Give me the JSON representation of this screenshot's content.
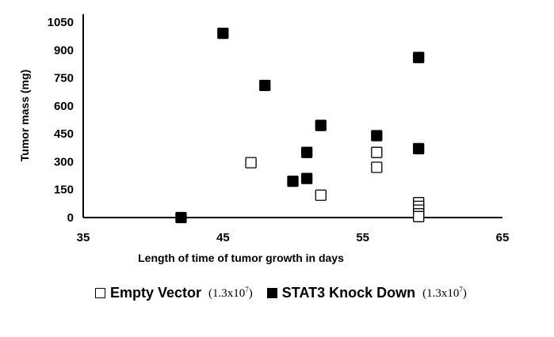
{
  "chart_data": {
    "type": "scatter",
    "title": "",
    "xlabel": "Length of  time of tumor growth in days",
    "ylabel": "Tumor mass (mg)",
    "xlim": [
      35,
      65
    ],
    "ylim": [
      0,
      1050
    ],
    "xticks": [
      "35",
      "45",
      "55",
      "65"
    ],
    "yticks": [
      "0",
      "150",
      "300",
      "450",
      "600",
      "750",
      "900",
      "1050"
    ],
    "grid": false,
    "legend_position": "bottom",
    "series": [
      {
        "name": "Empty Vector",
        "note": "(1.3x10",
        "note_sup": "7",
        "note_end": ")",
        "marker": "hollow-square",
        "color": "#000000",
        "points": [
          {
            "x": 47,
            "y": 295
          },
          {
            "x": 52,
            "y": 120
          },
          {
            "x": 56,
            "y": 350
          },
          {
            "x": 56,
            "y": 270
          },
          {
            "x": 59,
            "y": 80
          },
          {
            "x": 59,
            "y": 60
          },
          {
            "x": 59,
            "y": 40
          },
          {
            "x": 59,
            "y": 20
          },
          {
            "x": 59,
            "y": 5
          }
        ]
      },
      {
        "name": "STAT3 Knock Down",
        "note": "(1.3x10",
        "note_sup": "7",
        "note_end": ")",
        "marker": "filled-square",
        "color": "#000000",
        "points": [
          {
            "x": 42,
            "y": 0
          },
          {
            "x": 45,
            "y": 990
          },
          {
            "x": 48,
            "y": 710
          },
          {
            "x": 50,
            "y": 195
          },
          {
            "x": 51,
            "y": 210
          },
          {
            "x": 51,
            "y": 350
          },
          {
            "x": 52,
            "y": 495
          },
          {
            "x": 56,
            "y": 440
          },
          {
            "x": 59,
            "y": 860
          },
          {
            "x": 59,
            "y": 370
          }
        ]
      }
    ]
  }
}
